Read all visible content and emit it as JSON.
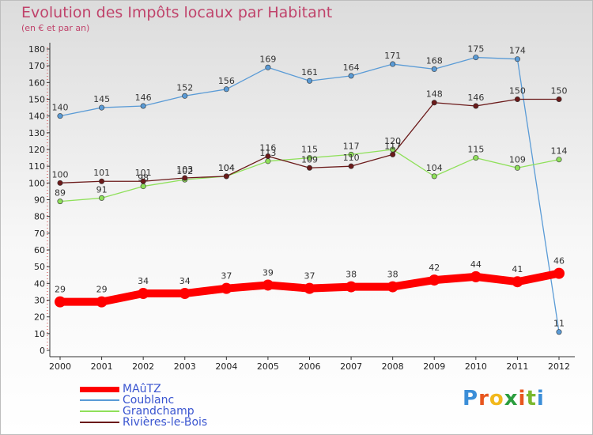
{
  "header": {
    "title": "Evolution des Impôts locaux par Habitant",
    "subtitle": "(en € et par an)"
  },
  "brand": {
    "name": "Proxiti",
    "letter_colors": [
      "#3b8ed8",
      "#e8561e",
      "#f2b81c",
      "#2b9d3e",
      "#e8561e",
      "#7ab82e",
      "#3b8ed8"
    ]
  },
  "chart_data": {
    "type": "line",
    "x": [
      "2000",
      "2001",
      "2002",
      "2003",
      "2004",
      "2005",
      "2006",
      "2007",
      "2008",
      "2009",
      "2010",
      "2011",
      "2012"
    ],
    "ylim": [
      0,
      180
    ],
    "ytick_step": 10,
    "grid": false,
    "legend_position": "bottom-left",
    "series": [
      {
        "name": "MAûTZ",
        "color": "#ff0000",
        "thick": true,
        "values": [
          29,
          29,
          34,
          34,
          37,
          39,
          37,
          38,
          38,
          42,
          44,
          41,
          46
        ]
      },
      {
        "name": "Coublanc",
        "color": "#5a9bd6",
        "thick": false,
        "values": [
          140,
          145,
          146,
          152,
          156,
          169,
          161,
          164,
          171,
          168,
          175,
          174,
          11
        ]
      },
      {
        "name": "Grandchamp",
        "color": "#8fe05a",
        "thick": false,
        "values": [
          89,
          91,
          98,
          102,
          104,
          113,
          115,
          117,
          120,
          104,
          115,
          109,
          114
        ]
      },
      {
        "name": "Rivières-le-Bois",
        "color": "#6b1a1a",
        "thick": false,
        "values": [
          100,
          101,
          101,
          103,
          104,
          116,
          109,
          110,
          117,
          148,
          146,
          150,
          150
        ]
      }
    ]
  }
}
